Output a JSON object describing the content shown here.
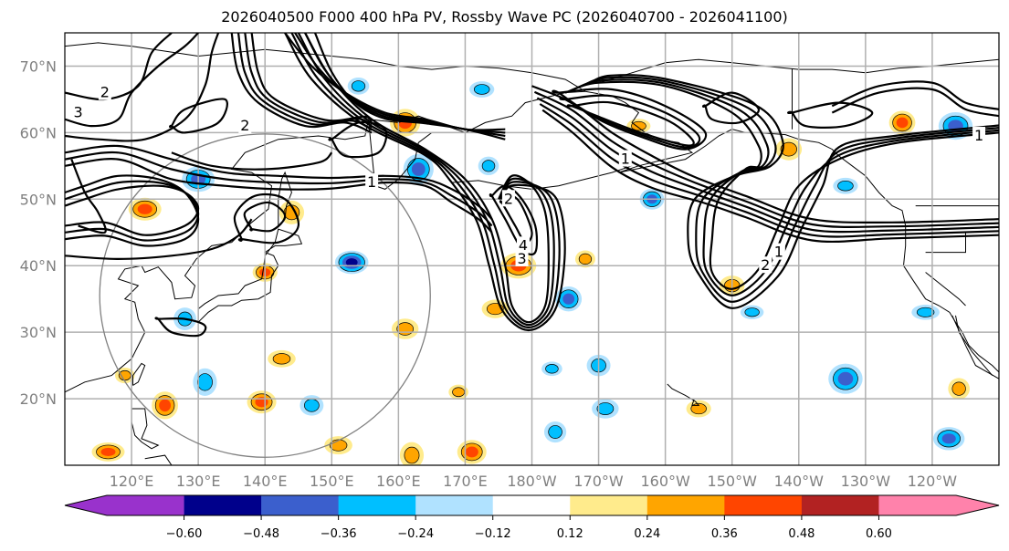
{
  "title": "2026040500 F000 400 hPa PV, Rossby Wave PC (2026040700 - 2026041100)",
  "map": {
    "projection": "cylindrical",
    "extent": {
      "lon_min": 110,
      "lon_max": 250,
      "lat_min": 10,
      "lat_max": 75
    },
    "lat_ticks": [
      {
        "value": 70,
        "label": "70°N"
      },
      {
        "value": 60,
        "label": "60°N"
      },
      {
        "value": 50,
        "label": "50°N"
      },
      {
        "value": 40,
        "label": "40°N"
      },
      {
        "value": 30,
        "label": "30°N"
      },
      {
        "value": 20,
        "label": "20°N"
      }
    ],
    "lon_ticks": [
      {
        "value": 120,
        "label": "120°E"
      },
      {
        "value": 130,
        "label": "130°E"
      },
      {
        "value": 140,
        "label": "140°E"
      },
      {
        "value": 150,
        "label": "150°E"
      },
      {
        "value": 160,
        "label": "160°E"
      },
      {
        "value": 170,
        "label": "170°E"
      },
      {
        "value": 180,
        "label": "180°W"
      },
      {
        "value": 190,
        "label": "170°W"
      },
      {
        "value": 200,
        "label": "160°W"
      },
      {
        "value": 210,
        "label": "150°W"
      },
      {
        "value": 220,
        "label": "140°W"
      },
      {
        "value": 230,
        "label": "130°W"
      },
      {
        "value": 240,
        "label": "120°W"
      }
    ],
    "grid_color": "#b0b0b0",
    "contour_field": "400 hPa PV (PVU)",
    "contour_labels": [
      {
        "text": "2",
        "lon": 116,
        "lat": 66
      },
      {
        "text": "3",
        "lon": 112,
        "lat": 63
      },
      {
        "text": "2",
        "lon": 137,
        "lat": 61
      },
      {
        "text": "1",
        "lon": 156,
        "lat": 52.5
      },
      {
        "text": "2",
        "lon": 176.5,
        "lat": 50
      },
      {
        "text": "4",
        "lon": 178.7,
        "lat": 43
      },
      {
        "text": "3",
        "lon": 178.5,
        "lat": 41
      },
      {
        "text": "1",
        "lon": 194,
        "lat": 56
      },
      {
        "text": "2",
        "lon": 215,
        "lat": 40
      },
      {
        "text": "1",
        "lon": 217,
        "lat": 42
      },
      {
        "text": "1",
        "lon": 247,
        "lat": 59.5
      }
    ],
    "reference_circle": {
      "center_lon": 140,
      "center_lat": 35.5,
      "radius_deg": 24.3
    }
  },
  "shading": {
    "field": "Rossby Wave PC anomaly",
    "anomalies": [
      {
        "lon": 153,
        "lat": 40.5,
        "value": -0.55
      },
      {
        "lon": 161,
        "lat": 61.5,
        "value": 0.4
      },
      {
        "lon": 122,
        "lat": 48.5,
        "value": 0.38
      },
      {
        "lon": 140,
        "lat": 39,
        "value": 0.37
      },
      {
        "lon": 144,
        "lat": 48,
        "value": 0.3
      },
      {
        "lon": 178,
        "lat": 40,
        "value": 0.42
      },
      {
        "lon": 154,
        "lat": 67,
        "value": -0.3
      },
      {
        "lon": 163,
        "lat": 54.5,
        "value": -0.4
      },
      {
        "lon": 130,
        "lat": 53,
        "value": -0.38
      },
      {
        "lon": 198,
        "lat": 50,
        "value": -0.36
      },
      {
        "lon": 196,
        "lat": 61,
        "value": 0.28
      },
      {
        "lon": 243.5,
        "lat": 61,
        "value": -0.4
      },
      {
        "lon": 235.5,
        "lat": 61.5,
        "value": 0.4
      },
      {
        "lon": 227,
        "lat": 52,
        "value": -0.3
      },
      {
        "lon": 218.5,
        "lat": 57.5,
        "value": 0.27
      },
      {
        "lon": 185.5,
        "lat": 35,
        "value": -0.4
      },
      {
        "lon": 205,
        "lat": 18.5,
        "value": 0.3
      },
      {
        "lon": 227,
        "lat": 23,
        "value": -0.4
      },
      {
        "lon": 244,
        "lat": 21.5,
        "value": 0.3
      },
      {
        "lon": 242.5,
        "lat": 14,
        "value": -0.42
      },
      {
        "lon": 239,
        "lat": 33,
        "value": -0.3
      },
      {
        "lon": 125,
        "lat": 19,
        "value": 0.4
      },
      {
        "lon": 139.5,
        "lat": 19.5,
        "value": 0.38
      },
      {
        "lon": 116.5,
        "lat": 12,
        "value": 0.38
      },
      {
        "lon": 162,
        "lat": 11.5,
        "value": 0.35
      },
      {
        "lon": 171,
        "lat": 12,
        "value": 0.38
      },
      {
        "lon": 142.5,
        "lat": 26,
        "value": 0.3
      },
      {
        "lon": 131,
        "lat": 22.5,
        "value": -0.35
      },
      {
        "lon": 147,
        "lat": 19,
        "value": -0.28
      },
      {
        "lon": 151,
        "lat": 13,
        "value": 0.3
      },
      {
        "lon": 183,
        "lat": 24.5,
        "value": -0.28
      },
      {
        "lon": 190,
        "lat": 25,
        "value": -0.28
      },
      {
        "lon": 174.5,
        "lat": 33.5,
        "value": 0.28
      },
      {
        "lon": 169,
        "lat": 21,
        "value": 0.26
      },
      {
        "lon": 183.5,
        "lat": 15,
        "value": -0.25
      },
      {
        "lon": 191,
        "lat": 18.5,
        "value": -0.28
      },
      {
        "lon": 119,
        "lat": 23.5,
        "value": 0.26
      },
      {
        "lon": 128,
        "lat": 32,
        "value": -0.26
      },
      {
        "lon": 161,
        "lat": 30.5,
        "value": 0.28
      },
      {
        "lon": 188,
        "lat": 41,
        "value": 0.27
      },
      {
        "lon": 213,
        "lat": 33,
        "value": -0.27
      },
      {
        "lon": 210,
        "lat": 37,
        "value": 0.25
      },
      {
        "lon": 173.5,
        "lat": 55,
        "value": -0.28
      },
      {
        "lon": 172.5,
        "lat": 66.5,
        "value": -0.3
      }
    ]
  },
  "colorbar": {
    "extend": "both",
    "boundaries": [
      -0.6,
      -0.48,
      -0.36,
      -0.24,
      -0.12,
      0.12,
      0.24,
      0.36,
      0.48,
      0.6
    ],
    "tick_labels": [
      "−0.60",
      "−0.48",
      "−0.36",
      "−0.24",
      "−0.12",
      "0.12",
      "0.24",
      "0.36",
      "0.48",
      "0.60"
    ],
    "colors": [
      "#9932cc",
      "#00008b",
      "#3b5fcd",
      "#00bfff",
      "#b0e2ff",
      "#ffffff",
      "#ffeb8c",
      "#ffa500",
      "#ff4500",
      "#b22222",
      "#ff82ab"
    ]
  },
  "chart_data": {
    "type": "heatmap",
    "title": "2026040500 F000 400 hPa PV, Rossby Wave PC (2026040700 - 2026041100)",
    "xlabel": "",
    "ylabel": "",
    "x_range": [
      110,
      250
    ],
    "y_range": [
      10,
      75
    ],
    "x_ticks": [
      "120°E",
      "130°E",
      "140°E",
      "150°E",
      "160°E",
      "170°E",
      "180°W",
      "170°W",
      "160°W",
      "150°W",
      "140°W",
      "130°W",
      "120°W"
    ],
    "y_ticks": [
      "70°N",
      "60°N",
      "50°N",
      "40°N",
      "30°N",
      "20°N"
    ],
    "colorbar_levels": [
      -0.6,
      -0.48,
      -0.36,
      -0.24,
      -0.12,
      0.12,
      0.24,
      0.36,
      0.48,
      0.6
    ],
    "grid": true,
    "legend": "bottom colorbar"
  }
}
